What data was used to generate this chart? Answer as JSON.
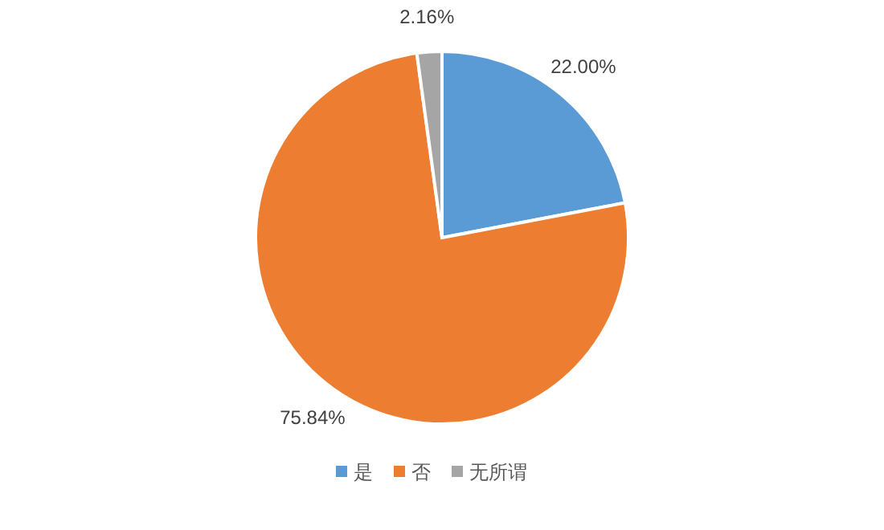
{
  "chart_data": {
    "type": "pie",
    "categories": [
      "是",
      "否",
      "无所谓"
    ],
    "values": [
      22.0,
      75.84,
      2.16
    ],
    "colors": [
      "#5b9bd5",
      "#ed7d31",
      "#a5a5a5"
    ],
    "value_labels": [
      "22.00%",
      "75.84%",
      "2.16%"
    ],
    "legend": "bottom"
  }
}
